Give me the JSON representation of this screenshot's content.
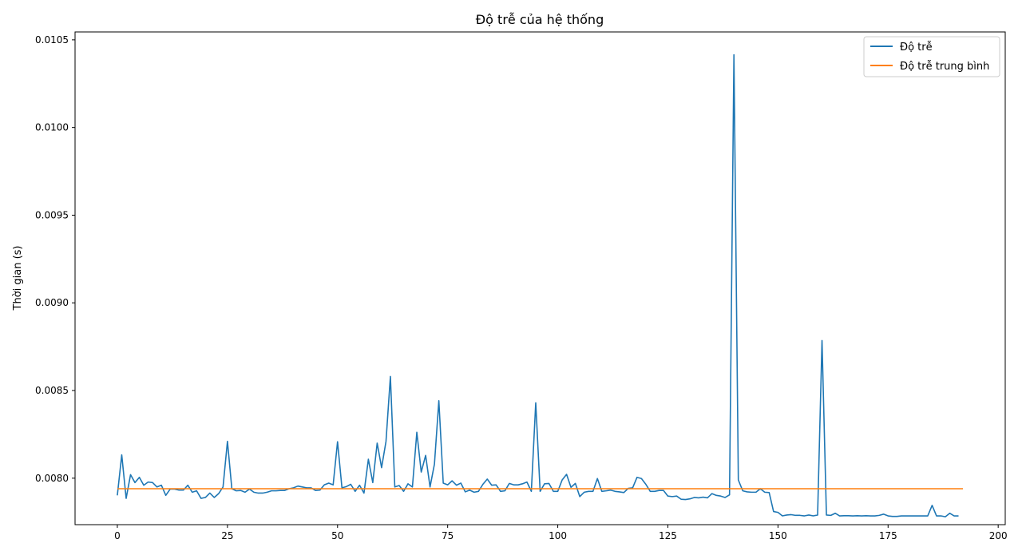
{
  "chart_data": {
    "type": "line",
    "title": "Độ trễ của hệ thống",
    "xlabel": "",
    "ylabel": "Thời gian (s)",
    "xlim": [
      -9.6,
      201.6
    ],
    "ylim": [
      0.007735,
      0.010545
    ],
    "xticks": [
      0,
      25,
      50,
      75,
      100,
      125,
      150,
      175,
      200
    ],
    "xtick_labels": [
      "0",
      "25",
      "50",
      "75",
      "100",
      "125",
      "150",
      "175",
      "200"
    ],
    "yticks": [
      0.008,
      0.0085,
      0.009,
      0.0095,
      0.01,
      0.0105
    ],
    "ytick_labels": [
      "0.0080",
      "0.0085",
      "0.0090",
      "0.0095",
      "0.0100",
      "0.0105"
    ],
    "grid": false,
    "legend_position": "upper right",
    "series": [
      {
        "name": "Độ trễ",
        "color": "#1f77b4",
        "x_start": 0,
        "x_step": 1,
        "values": [
          0.007902,
          0.008133,
          0.007885,
          0.00802,
          0.007975,
          0.008005,
          0.00796,
          0.007978,
          0.007975,
          0.00795,
          0.00796,
          0.007902,
          0.007938,
          0.007938,
          0.007932,
          0.007932,
          0.00796,
          0.00792,
          0.007928,
          0.007885,
          0.00789,
          0.007915,
          0.00789,
          0.007912,
          0.00795,
          0.00821,
          0.00794,
          0.007928,
          0.00793,
          0.00792,
          0.007938,
          0.00792,
          0.007915,
          0.007915,
          0.00792,
          0.007928,
          0.007928,
          0.00793,
          0.00793,
          0.00794,
          0.007945,
          0.007955,
          0.00795,
          0.007945,
          0.007945,
          0.00793,
          0.007932,
          0.007962,
          0.007972,
          0.007962,
          0.008208,
          0.007945,
          0.007952,
          0.007965,
          0.007925,
          0.00796,
          0.007915,
          0.008108,
          0.007975,
          0.0082,
          0.00806,
          0.00821,
          0.00858,
          0.00795,
          0.007958,
          0.007925,
          0.007968,
          0.00795,
          0.008262,
          0.008035,
          0.00813,
          0.00795,
          0.00808,
          0.008442,
          0.007972,
          0.007962,
          0.007985,
          0.00796,
          0.007972,
          0.007922,
          0.007932,
          0.00792,
          0.007925,
          0.007965,
          0.007995,
          0.00796,
          0.007962,
          0.007925,
          0.007928,
          0.00797,
          0.007962,
          0.007962,
          0.007968,
          0.007978,
          0.007925,
          0.00843,
          0.007925,
          0.007968,
          0.00797,
          0.007925,
          0.007925,
          0.00799,
          0.008022,
          0.007948,
          0.00797,
          0.007895,
          0.00792,
          0.007925,
          0.007925,
          0.007998,
          0.007925,
          0.007928,
          0.007932,
          0.007925,
          0.007922,
          0.007918,
          0.007942,
          0.007945,
          0.008005,
          0.007998,
          0.007965,
          0.007925,
          0.007925,
          0.00793,
          0.00793,
          0.007898,
          0.007895,
          0.007898,
          0.00788,
          0.007878,
          0.007882,
          0.00789,
          0.007888,
          0.007892,
          0.007888,
          0.007912,
          0.007902,
          0.007898,
          0.00789,
          0.007905,
          0.010415,
          0.00799,
          0.007928,
          0.007922,
          0.00792,
          0.00792,
          0.00794,
          0.00792,
          0.007918,
          0.00781,
          0.007805,
          0.007785,
          0.00779,
          0.007792,
          0.007788,
          0.007788,
          0.007785,
          0.00779,
          0.007785,
          0.00779,
          0.008785,
          0.00779,
          0.007788,
          0.0078,
          0.007785,
          0.007786,
          0.007786,
          0.007785,
          0.007786,
          0.007785,
          0.007786,
          0.007785,
          0.007785,
          0.007788,
          0.007795,
          0.007785,
          0.007782,
          0.007782,
          0.007785,
          0.007785,
          0.007785,
          0.007785,
          0.007785,
          0.007785,
          0.007785,
          0.007845,
          0.007785,
          0.007785,
          0.00778,
          0.0078,
          0.007785,
          0.007785
        ]
      },
      {
        "name": "Độ trễ trung bình",
        "color": "#ff7f0e",
        "x": [
          0,
          192
        ],
        "values": [
          0.00794,
          0.00794
        ]
      }
    ]
  }
}
